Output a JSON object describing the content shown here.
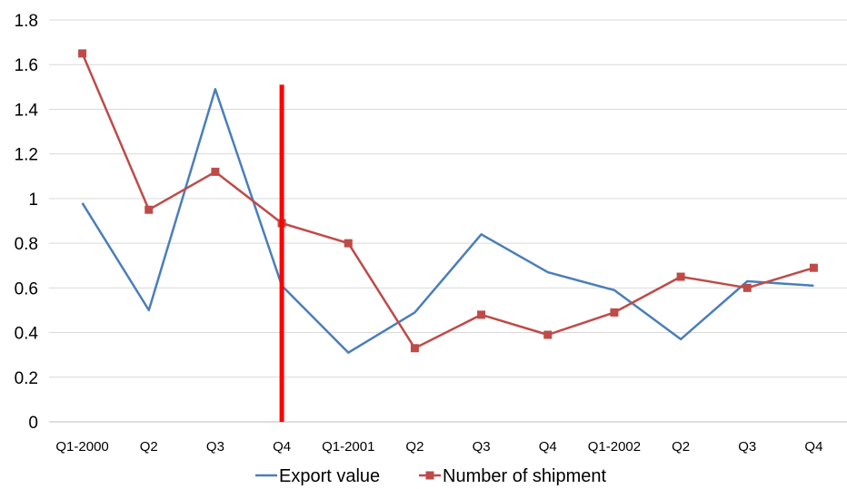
{
  "chart_data": {
    "type": "line",
    "categories": [
      "Q1-2000",
      "Q2",
      "Q3",
      "Q4",
      "Q1-2001",
      "Q2",
      "Q3",
      "Q4",
      "Q1-2002",
      "Q2",
      "Q3",
      "Q4"
    ],
    "series": [
      {
        "name": "Export value",
        "color": "#4a7ebb",
        "marker": "none",
        "values": [
          0.98,
          0.5,
          1.49,
          0.61,
          0.31,
          0.49,
          0.84,
          0.67,
          0.59,
          0.37,
          0.63,
          0.61
        ]
      },
      {
        "name": "Number of shipment",
        "color": "#be4b48",
        "marker": "square",
        "values": [
          1.65,
          0.95,
          1.12,
          0.89,
          0.8,
          0.33,
          0.48,
          0.39,
          0.49,
          0.65,
          0.6,
          0.69
        ]
      }
    ],
    "yticks": [
      "0",
      "0.2",
      "0.4",
      "0.6",
      "0.8",
      "1",
      "1.2",
      "1.4",
      "1.6",
      "1.8"
    ],
    "ylim": [
      0,
      1.8
    ],
    "grid": "horizontal",
    "legend_position": "bottom",
    "annotation": {
      "type": "vertical-line",
      "at_category_index": 3,
      "from": 0,
      "to": 1.51,
      "color": "#ff0000"
    }
  }
}
